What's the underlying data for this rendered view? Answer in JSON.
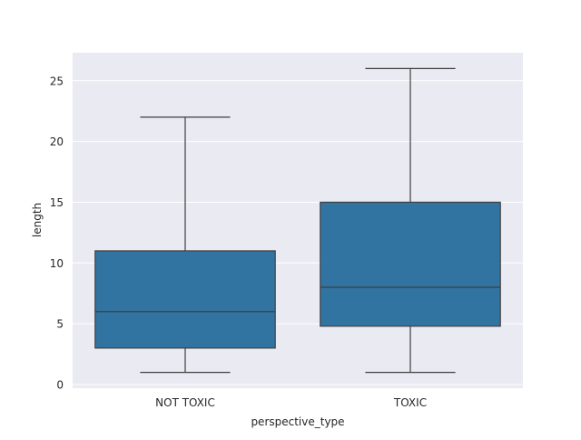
{
  "chart_data": {
    "type": "box",
    "title": "",
    "xlabel": "perspective_type",
    "ylabel": "length",
    "categories": [
      "NOT TOXIC",
      "TOXIC"
    ],
    "ylim": [
      -0.3,
      27.3
    ],
    "yticks": [
      0,
      5,
      10,
      15,
      20,
      25
    ],
    "grid": true,
    "background": "#EAEAF2",
    "box_color": "#3274A1",
    "line_color": "#3F3F3F",
    "boxes": [
      {
        "category": "NOT TOXIC",
        "whisker_low": 1,
        "q1": 3,
        "median": 6,
        "q3": 11,
        "whisker_high": 22
      },
      {
        "category": "TOXIC",
        "whisker_low": 1,
        "q1": 4.8,
        "median": 8,
        "q3": 15,
        "whisker_high": 26
      }
    ]
  }
}
